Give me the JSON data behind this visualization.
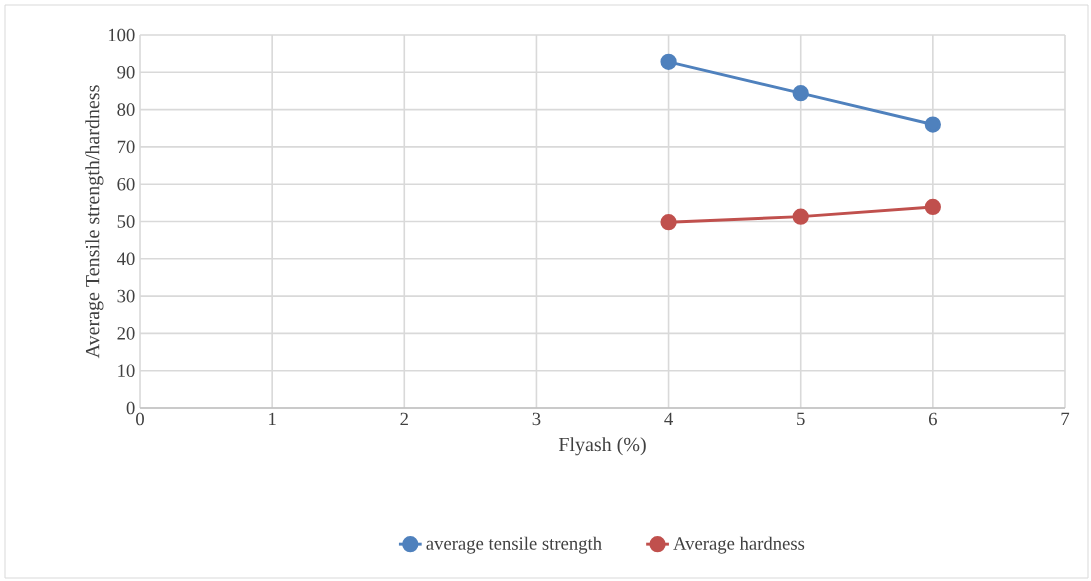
{
  "chart_data": {
    "type": "line",
    "xlabel": "Flyash (%)",
    "ylabel": "Average Tensile strength/hardness",
    "x": [
      4,
      5,
      6
    ],
    "series": [
      {
        "name": "average tensile strength",
        "color": "#4f81bd",
        "values": [
          92.8,
          84.4,
          76.0
        ]
      },
      {
        "name": "Average hardness",
        "color": "#c0504d",
        "values": [
          49.8,
          51.3,
          53.9
        ]
      }
    ],
    "xlim": [
      0,
      7
    ],
    "xticks": [
      0,
      1,
      2,
      3,
      4,
      5,
      6,
      7
    ],
    "ylim": [
      0,
      100
    ],
    "yticks": [
      0,
      10,
      20,
      30,
      40,
      50,
      60,
      70,
      80,
      90,
      100
    ],
    "grid": true,
    "legend": "bottom",
    "marker": "circle",
    "line_style": "solid"
  }
}
